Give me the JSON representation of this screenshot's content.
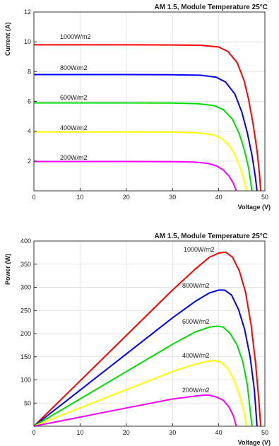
{
  "chart_data": [
    {
      "type": "line",
      "title": "AM 1.5, Module Temperature 25°C",
      "xlabel": "Voltage (V)",
      "ylabel": "Current (A)",
      "xlim": [
        0,
        50
      ],
      "ylim": [
        0,
        12
      ],
      "xticks": [
        "0",
        "10",
        "20",
        "30",
        "40",
        "50"
      ],
      "yticks": [
        "2",
        "4",
        "6",
        "8",
        "10",
        "12"
      ],
      "grid": true,
      "series": [
        {
          "name": "1000W/m2",
          "color": "#ff0000",
          "points": [
            [
              0,
              9.8
            ],
            [
              10,
              9.8
            ],
            [
              20,
              9.8
            ],
            [
              30,
              9.79
            ],
            [
              36,
              9.77
            ],
            [
              40,
              9.65
            ],
            [
              42,
              9.35
            ],
            [
              44,
              8.6
            ],
            [
              45.5,
              7.4
            ],
            [
              46.5,
              6.1
            ],
            [
              47.5,
              4.4
            ],
            [
              48.3,
              2.7
            ],
            [
              48.8,
              1.2
            ],
            [
              49.1,
              0
            ]
          ]
        },
        {
          "name": "800W/m2",
          "color": "#0000ff",
          "points": [
            [
              0,
              7.8
            ],
            [
              10,
              7.8
            ],
            [
              20,
              7.8
            ],
            [
              30,
              7.79
            ],
            [
              36,
              7.76
            ],
            [
              39.5,
              7.62
            ],
            [
              41.5,
              7.3
            ],
            [
              43.5,
              6.5
            ],
            [
              45,
              5.3
            ],
            [
              46.2,
              3.9
            ],
            [
              47.2,
              2.4
            ],
            [
              47.9,
              1.0
            ],
            [
              48.3,
              0
            ]
          ]
        },
        {
          "name": "600W/m2",
          "color": "#00dd00",
          "points": [
            [
              0,
              5.9
            ],
            [
              10,
              5.9
            ],
            [
              20,
              5.9
            ],
            [
              30,
              5.89
            ],
            [
              35.5,
              5.85
            ],
            [
              39,
              5.72
            ],
            [
              41,
              5.45
            ],
            [
              43,
              4.8
            ],
            [
              44.5,
              3.8
            ],
            [
              45.6,
              2.7
            ],
            [
              46.5,
              1.5
            ],
            [
              47.2,
              0
            ]
          ]
        },
        {
          "name": "400W/m2",
          "color": "#ffff00",
          "points": [
            [
              0,
              3.95
            ],
            [
              10,
              3.95
            ],
            [
              20,
              3.95
            ],
            [
              30,
              3.94
            ],
            [
              35,
              3.9
            ],
            [
              38.5,
              3.78
            ],
            [
              40.5,
              3.55
            ],
            [
              42.3,
              3.05
            ],
            [
              43.5,
              2.4
            ],
            [
              44.6,
              1.6
            ],
            [
              45.5,
              0.7
            ],
            [
              46,
              0
            ]
          ]
        },
        {
          "name": "200W/m2",
          "color": "#ff00ff",
          "points": [
            [
              0,
              1.97
            ],
            [
              10,
              1.97
            ],
            [
              20,
              1.97
            ],
            [
              30,
              1.96
            ],
            [
              34.5,
              1.93
            ],
            [
              37.5,
              1.85
            ],
            [
              39.5,
              1.68
            ],
            [
              41,
              1.4
            ],
            [
              42.2,
              1.0
            ],
            [
              43.2,
              0.5
            ],
            [
              43.8,
              0
            ]
          ]
        }
      ]
    },
    {
      "type": "line",
      "title": "AM 1.5, Module Temperature 25°C",
      "xlabel": "Voltage (V)",
      "ylabel": "Power (W)",
      "xlim": [
        0,
        50
      ],
      "ylim": [
        0,
        400
      ],
      "xticks": [
        "0",
        "10",
        "20",
        "30",
        "40",
        "50"
      ],
      "yticks": [
        "50",
        "100",
        "150",
        "200",
        "250",
        "300",
        "350",
        "400"
      ],
      "grid": true,
      "series": [
        {
          "name": "1000W/m2",
          "color": "#ff0000",
          "points": [
            [
              0,
              0
            ],
            [
              10,
              98
            ],
            [
              20,
              196
            ],
            [
              30,
              294
            ],
            [
              35,
              340
            ],
            [
              38,
              365
            ],
            [
              40,
              374
            ],
            [
              41.5,
              376
            ],
            [
              43,
              365
            ],
            [
              44.5,
              335
            ],
            [
              45.8,
              290
            ],
            [
              47,
              220
            ],
            [
              48,
              135
            ],
            [
              48.7,
              55
            ],
            [
              49.1,
              0
            ]
          ]
        },
        {
          "name": "800W/m2",
          "color": "#0000ff",
          "points": [
            [
              0,
              0
            ],
            [
              10,
              78
            ],
            [
              20,
              156
            ],
            [
              30,
              234
            ],
            [
              35,
              270
            ],
            [
              38,
              288
            ],
            [
              40,
              294
            ],
            [
              41.3,
              294
            ],
            [
              42.8,
              283
            ],
            [
              44.3,
              252
            ],
            [
              45.6,
              210
            ],
            [
              46.8,
              150
            ],
            [
              47.7,
              80
            ],
            [
              48.3,
              0
            ]
          ]
        },
        {
          "name": "600W/m2",
          "color": "#00dd00",
          "points": [
            [
              0,
              0
            ],
            [
              10,
              59
            ],
            [
              20,
              118
            ],
            [
              30,
              177
            ],
            [
              35,
              204
            ],
            [
              38,
              214
            ],
            [
              39.8,
              216
            ],
            [
              41,
              214
            ],
            [
              42.5,
              200
            ],
            [
              44,
              175
            ],
            [
              45.2,
              140
            ],
            [
              46.2,
              90
            ],
            [
              47.2,
              0
            ]
          ]
        },
        {
          "name": "400W/m2",
          "color": "#ffff00",
          "points": [
            [
              0,
              0
            ],
            [
              10,
              39.5
            ],
            [
              20,
              79
            ],
            [
              30,
              118
            ],
            [
              34.5,
              133
            ],
            [
              37.5,
              140
            ],
            [
              39,
              142
            ],
            [
              40.5,
              138
            ],
            [
              42,
              124
            ],
            [
              43.3,
              100
            ],
            [
              44.5,
              68
            ],
            [
              45.5,
              30
            ],
            [
              46,
              0
            ]
          ]
        },
        {
          "name": "200W/m2",
          "color": "#ff00ff",
          "points": [
            [
              0,
              0
            ],
            [
              10,
              19.7
            ],
            [
              20,
              39.4
            ],
            [
              30,
              58.8
            ],
            [
              34,
              64
            ],
            [
              36.5,
              67
            ],
            [
              38,
              67
            ],
            [
              39.5,
              63
            ],
            [
              41,
              56
            ],
            [
              42.2,
              42
            ],
            [
              43.2,
              22
            ],
            [
              43.8,
              0
            ]
          ]
        }
      ]
    }
  ]
}
